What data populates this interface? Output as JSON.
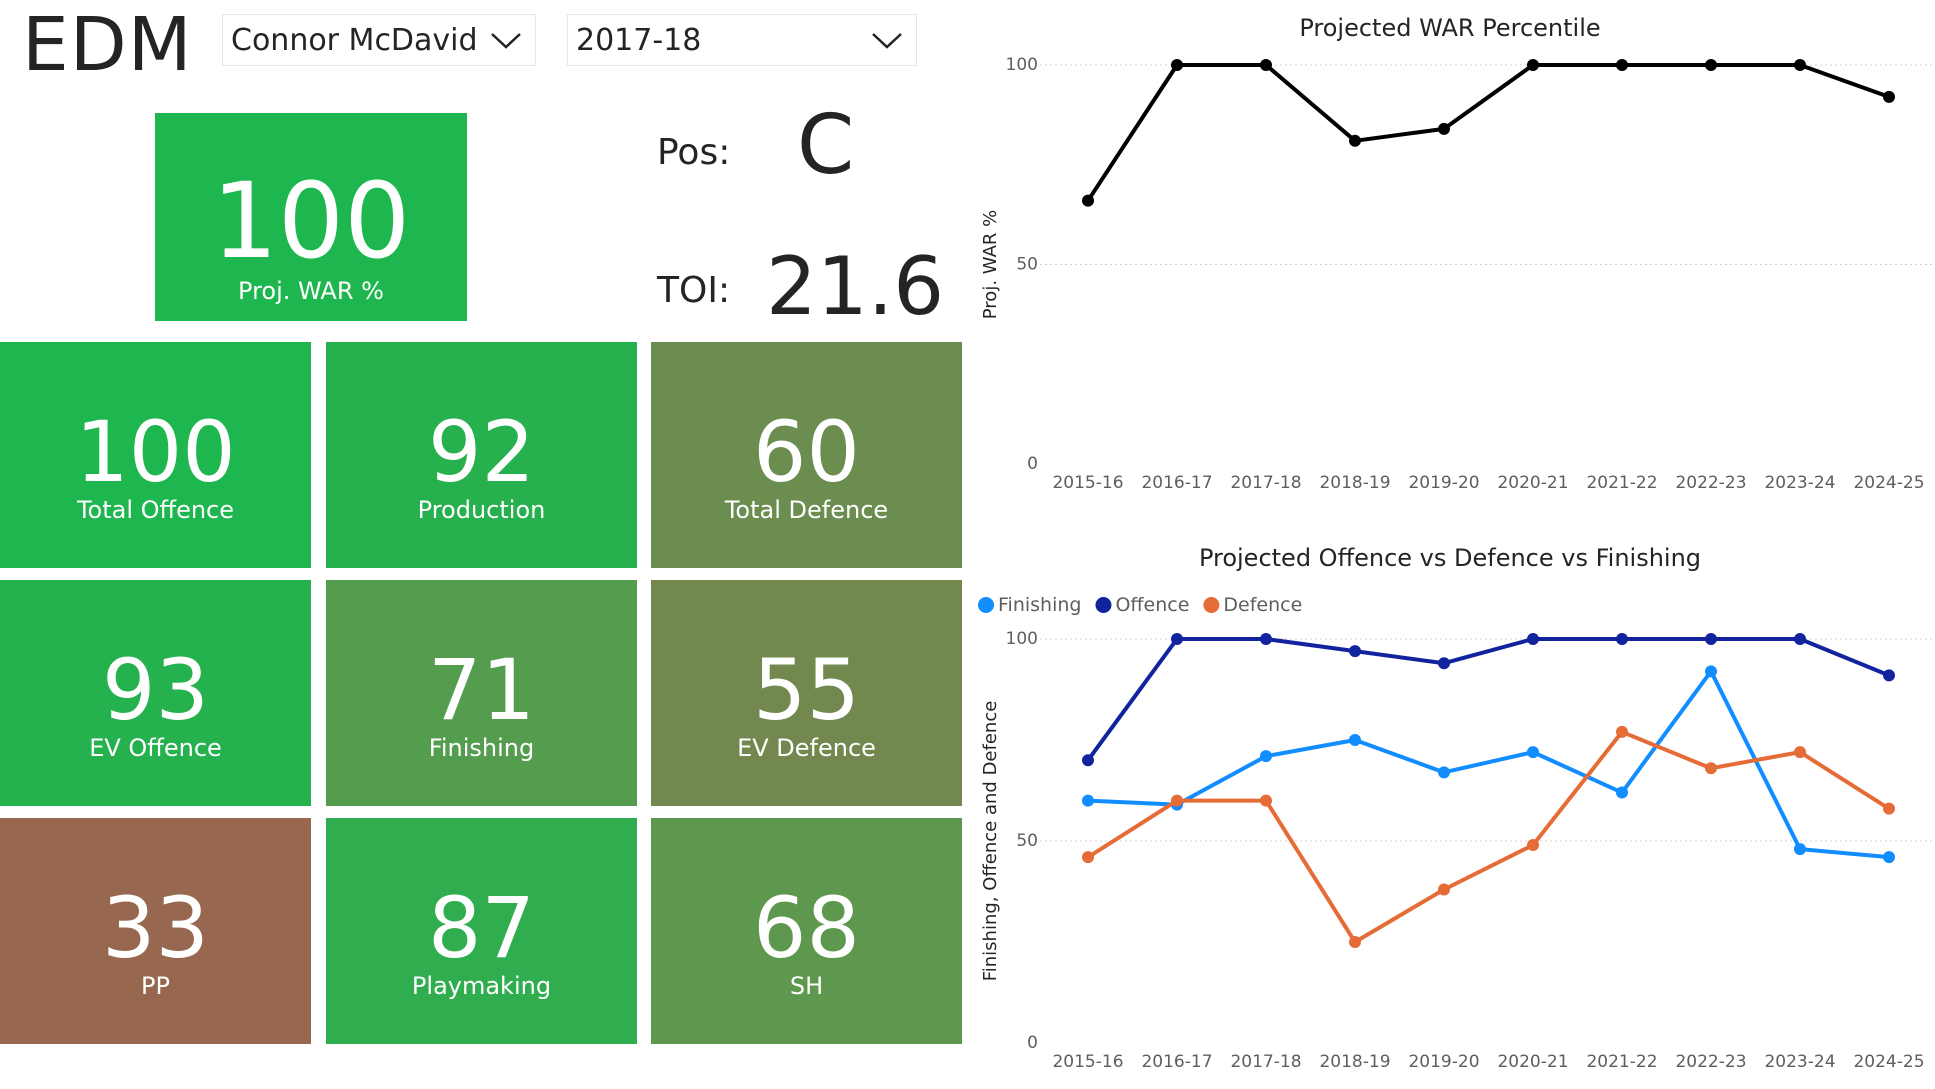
{
  "header": {
    "team": "EDM",
    "player_slicer": "Connor McDavid",
    "season_slicer": "2017-18"
  },
  "player": {
    "pos_label": "Pos:",
    "pos_value": "C",
    "toi_label": "TOI:",
    "toi_value": "21.6"
  },
  "main_tile": {
    "value": "100",
    "label": "Proj. WAR %",
    "color": "#1eb64f"
  },
  "tiles": [
    {
      "value": "100",
      "label": "Total Offence",
      "color": "#1eb64f"
    },
    {
      "value": "92",
      "label": "Production",
      "color": "#27b04e"
    },
    {
      "value": "60",
      "label": "Total Defence",
      "color": "#6b8d4f"
    },
    {
      "value": "93",
      "label": "EV Offence",
      "color": "#25b14e"
    },
    {
      "value": "71",
      "label": "Finishing",
      "color": "#559d4e"
    },
    {
      "value": "55",
      "label": "EV Defence",
      "color": "#72884f"
    },
    {
      "value": "33",
      "label": "PP",
      "color": "#986750"
    },
    {
      "value": "87",
      "label": "Playmaking",
      "color": "#30ad4e"
    },
    {
      "value": "68",
      "label": "SH",
      "color": "#5e974e"
    }
  ],
  "chart_data": [
    {
      "type": "line",
      "title": "Projected WAR Percentile",
      "xlabel": "",
      "ylabel": "Proj. WAR %",
      "ylim": [
        0,
        100
      ],
      "yticks": [
        "0",
        "50",
        "100"
      ],
      "categories": [
        "2015-16",
        "2016-17",
        "2017-18",
        "2018-19",
        "2019-20",
        "2020-21",
        "2021-22",
        "2022-23",
        "2023-24",
        "2024-25"
      ],
      "series": [
        {
          "name": "Proj. WAR %",
          "color": "#000000",
          "values": [
            66,
            100,
            100,
            81,
            84,
            100,
            100,
            100,
            100,
            92
          ]
        }
      ]
    },
    {
      "type": "line",
      "title": "Projected Offence vs Defence vs Finishing",
      "xlabel": "",
      "ylabel": "Finishing, Offence and Defence",
      "ylim": [
        0,
        100
      ],
      "yticks": [
        "0",
        "50",
        "100"
      ],
      "legend": "top-left",
      "categories": [
        "2015-16",
        "2016-17",
        "2017-18",
        "2018-19",
        "2019-20",
        "2020-21",
        "2021-22",
        "2022-23",
        "2023-24",
        "2024-25"
      ],
      "series": [
        {
          "name": "Finishing",
          "color": "#118dff",
          "values": [
            60,
            59,
            71,
            75,
            67,
            72,
            62,
            92,
            48,
            46
          ]
        },
        {
          "name": "Offence",
          "color": "#12239e",
          "values": [
            70,
            100,
            100,
            97,
            94,
            100,
            100,
            100,
            100,
            91
          ]
        },
        {
          "name": "Defence",
          "color": "#e66c37",
          "values": [
            46,
            60,
            60,
            25,
            38,
            49,
            77,
            68,
            72,
            58
          ]
        }
      ]
    }
  ]
}
